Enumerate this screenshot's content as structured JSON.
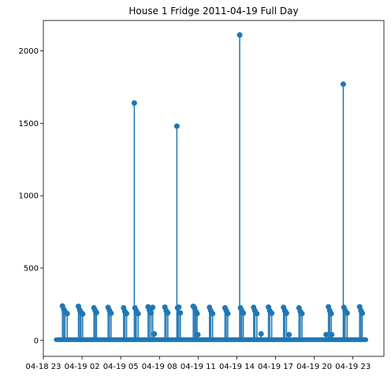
{
  "chart_data": {
    "type": "scatter",
    "style": "stem",
    "title": "House 1 Fridge 2011-04-19 Full Day",
    "xlabel": "",
    "ylabel": "",
    "color": "#1f77b4",
    "xlim_hours": [
      -1.0,
      25.4
    ],
    "ylim": [
      -110,
      2210
    ],
    "x_ticks": [
      {
        "label": "04-18 23",
        "hour": -1
      },
      {
        "label": "04-19 02",
        "hour": 2
      },
      {
        "label": "04-19 05",
        "hour": 5
      },
      {
        "label": "04-19 08",
        "hour": 8
      },
      {
        "label": "04-19 11",
        "hour": 11
      },
      {
        "label": "04-19 14",
        "hour": 14
      },
      {
        "label": "04-19 17",
        "hour": 17
      },
      {
        "label": "04-19 20",
        "hour": 20
      },
      {
        "label": "04-19 23",
        "hour": 23
      }
    ],
    "y_ticks": [
      {
        "label": "0",
        "value": 0
      },
      {
        "label": "500",
        "value": 500
      },
      {
        "label": "1000",
        "value": 1000
      },
      {
        "label": "1500",
        "value": 1500
      },
      {
        "label": "2000",
        "value": 2000
      }
    ],
    "baseline": {
      "from_hour": 0.0,
      "to_hour": 24.0,
      "value": 5
    },
    "points": [
      {
        "hour": 0.48,
        "value": 238
      },
      {
        "hour": 0.58,
        "value": 215
      },
      {
        "hour": 0.68,
        "value": 200
      },
      {
        "hour": 0.85,
        "value": 185
      },
      {
        "hour": 1.72,
        "value": 235
      },
      {
        "hour": 1.82,
        "value": 210
      },
      {
        "hour": 1.92,
        "value": 195
      },
      {
        "hour": 2.05,
        "value": 183
      },
      {
        "hour": 2.92,
        "value": 225
      },
      {
        "hour": 3.02,
        "value": 205
      },
      {
        "hour": 3.12,
        "value": 192
      },
      {
        "hour": 4.02,
        "value": 228
      },
      {
        "hour": 4.12,
        "value": 208
      },
      {
        "hour": 4.25,
        "value": 188
      },
      {
        "hour": 5.22,
        "value": 225
      },
      {
        "hour": 5.32,
        "value": 200
      },
      {
        "hour": 5.45,
        "value": 185
      },
      {
        "hour": 6.05,
        "value": 1640
      },
      {
        "hour": 6.1,
        "value": 225
      },
      {
        "hour": 6.2,
        "value": 205
      },
      {
        "hour": 6.35,
        "value": 185
      },
      {
        "hour": 7.12,
        "value": 232
      },
      {
        "hour": 7.22,
        "value": 210
      },
      {
        "hour": 7.35,
        "value": 190
      },
      {
        "hour": 7.48,
        "value": 228
      },
      {
        "hour": 7.6,
        "value": 45
      },
      {
        "hour": 8.42,
        "value": 230
      },
      {
        "hour": 8.52,
        "value": 205
      },
      {
        "hour": 8.65,
        "value": 190
      },
      {
        "hour": 9.35,
        "value": 1480
      },
      {
        "hour": 9.4,
        "value": 225
      },
      {
        "hour": 9.5,
        "value": 230
      },
      {
        "hour": 9.62,
        "value": 190
      },
      {
        "hour": 10.62,
        "value": 235
      },
      {
        "hour": 10.72,
        "value": 225
      },
      {
        "hour": 10.82,
        "value": 200
      },
      {
        "hour": 10.92,
        "value": 185
      },
      {
        "hour": 10.98,
        "value": 40
      },
      {
        "hour": 11.88,
        "value": 228
      },
      {
        "hour": 11.98,
        "value": 205
      },
      {
        "hour": 12.12,
        "value": 185
      },
      {
        "hour": 13.08,
        "value": 225
      },
      {
        "hour": 13.18,
        "value": 205
      },
      {
        "hour": 13.3,
        "value": 185
      },
      {
        "hour": 14.22,
        "value": 2110
      },
      {
        "hour": 14.28,
        "value": 225
      },
      {
        "hour": 14.38,
        "value": 205
      },
      {
        "hour": 14.5,
        "value": 188
      },
      {
        "hour": 15.3,
        "value": 228
      },
      {
        "hour": 15.4,
        "value": 205
      },
      {
        "hour": 15.55,
        "value": 185
      },
      {
        "hour": 15.88,
        "value": 45
      },
      {
        "hour": 16.45,
        "value": 230
      },
      {
        "hour": 16.55,
        "value": 205
      },
      {
        "hour": 16.7,
        "value": 188
      },
      {
        "hour": 17.62,
        "value": 228
      },
      {
        "hour": 17.72,
        "value": 205
      },
      {
        "hour": 17.85,
        "value": 188
      },
      {
        "hour": 18.05,
        "value": 40
      },
      {
        "hour": 18.82,
        "value": 225
      },
      {
        "hour": 18.92,
        "value": 200
      },
      {
        "hour": 19.05,
        "value": 185
      },
      {
        "hour": 20.92,
        "value": 40
      },
      {
        "hour": 21.1,
        "value": 232
      },
      {
        "hour": 21.2,
        "value": 205
      },
      {
        "hour": 21.32,
        "value": 185
      },
      {
        "hour": 21.35,
        "value": 40
      },
      {
        "hour": 22.25,
        "value": 1770
      },
      {
        "hour": 22.3,
        "value": 228
      },
      {
        "hour": 22.4,
        "value": 205
      },
      {
        "hour": 22.55,
        "value": 188
      },
      {
        "hour": 23.52,
        "value": 232
      },
      {
        "hour": 23.62,
        "value": 205
      },
      {
        "hour": 23.72,
        "value": 188
      }
    ]
  }
}
